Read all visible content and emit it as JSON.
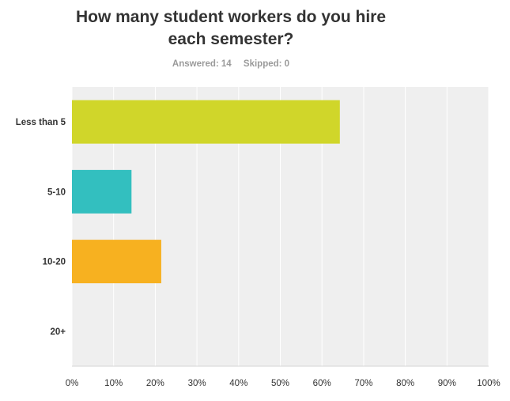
{
  "header": {
    "title_line1": "How many student workers do you hire",
    "title_line2": "each semester?",
    "answered": "Answered: 14",
    "skipped": "Skipped: 0"
  },
  "chart_data": {
    "type": "bar",
    "orientation": "horizontal",
    "title": "How many student workers do you hire each semester?",
    "categories": [
      "Less than 5",
      "5-10",
      "10-20",
      "20+"
    ],
    "values": [
      64.29,
      14.29,
      21.43,
      0
    ],
    "colors": [
      "#d0d62a",
      "#33bfbf",
      "#f7b120",
      "#a4c639"
    ],
    "xlim": [
      0,
      100
    ],
    "x_ticks": [
      "0%",
      "10%",
      "20%",
      "30%",
      "40%",
      "50%",
      "60%",
      "70%",
      "80%",
      "90%",
      "100%"
    ],
    "grid": true,
    "plot_background": "#efefef"
  }
}
